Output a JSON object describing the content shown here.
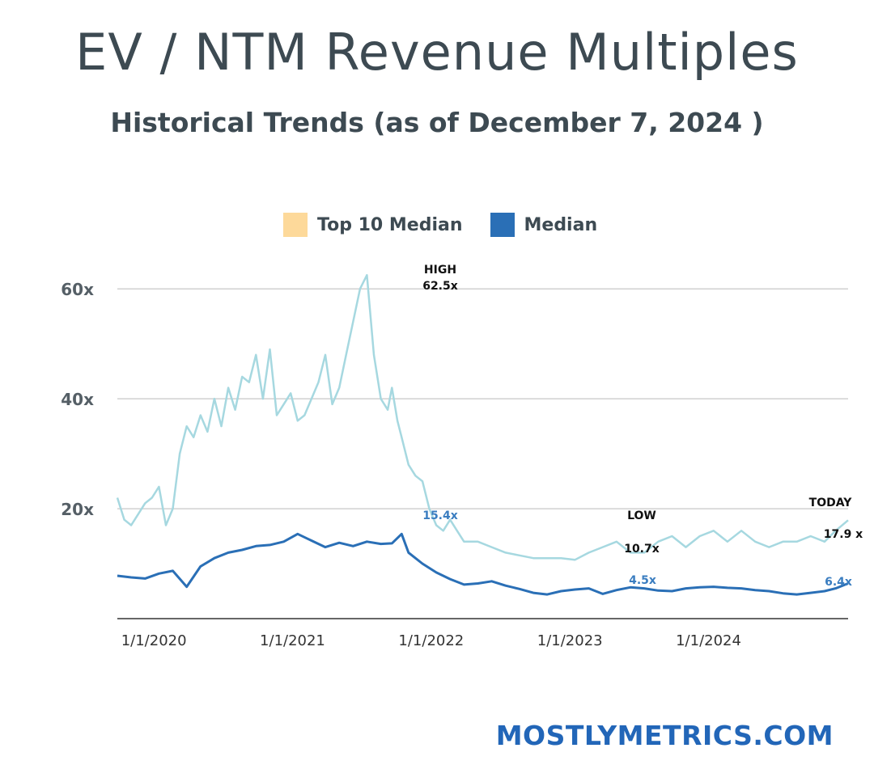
{
  "colors": {
    "top10": "#a6d8e0",
    "top10_swatch": "#fdd99a",
    "median": "#2a6fb6",
    "footer": "#2266b8"
  },
  "footer": {
    "text": "MOSTLYMETRICS.COM"
  },
  "chart_data": {
    "type": "line",
    "title": "EV / NTM Revenue Multiples",
    "subtitle": "Historical Trends (as of December 7, 2024   )",
    "legend": {
      "placement": "top",
      "entries": [
        "Top 10 Median",
        "Median"
      ]
    },
    "y_ticks": [
      "20x",
      "40x",
      "60x"
    ],
    "ylim": [
      0,
      64
    ],
    "x_ticks": [
      {
        "label": "1/1/2020",
        "value": 2020.0
      },
      {
        "label": "1/1/2021",
        "value": 2021.0
      },
      {
        "label": "1/1/2022",
        "value": 2022.0
      },
      {
        "label": "1/1/2023",
        "value": 2023.0
      },
      {
        "label": "1/1/2024",
        "value": 2024.0
      }
    ],
    "xlim": [
      2019.9,
      2025.17
    ],
    "grid": true,
    "series": [
      {
        "name": "Top 10 Median",
        "color": "#a6d8e0",
        "x": [
          2019.9,
          2019.95,
          2020.0,
          2020.05,
          2020.1,
          2020.15,
          2020.2,
          2020.25,
          2020.3,
          2020.35,
          2020.4,
          2020.45,
          2020.5,
          2020.55,
          2020.6,
          2020.65,
          2020.7,
          2020.75,
          2020.8,
          2020.85,
          2020.9,
          2020.95,
          2021.0,
          2021.05,
          2021.1,
          2021.15,
          2021.2,
          2021.25,
          2021.3,
          2021.35,
          2021.4,
          2021.45,
          2021.5,
          2021.55,
          2021.6,
          2021.65,
          2021.7,
          2021.75,
          2021.8,
          2021.85,
          2021.88,
          2021.92,
          2021.95,
          2022.0,
          2022.05,
          2022.1,
          2022.15,
          2022.2,
          2022.25,
          2022.3,
          2022.35,
          2022.4,
          2022.5,
          2022.6,
          2022.7,
          2022.8,
          2022.9,
          2023.0,
          2023.1,
          2023.2,
          2023.3,
          2023.4,
          2023.5,
          2023.6,
          2023.7,
          2023.8,
          2023.9,
          2024.0,
          2024.1,
          2024.2,
          2024.3,
          2024.4,
          2024.5,
          2024.6,
          2024.7,
          2024.8,
          2024.9,
          2025.0,
          2025.08,
          2025.17
        ],
        "values": [
          22,
          18,
          17,
          19,
          21,
          22,
          24,
          17,
          20,
          30,
          35,
          33,
          37,
          34,
          40,
          35,
          42,
          38,
          44,
          43,
          48,
          40,
          49,
          37,
          39,
          41,
          36,
          37,
          40,
          43,
          48,
          39,
          42,
          48,
          54,
          60,
          62.5,
          48,
          40,
          38,
          42,
          36,
          33,
          28,
          26,
          25,
          20,
          17,
          16,
          18,
          16,
          14,
          14,
          13,
          12,
          11.5,
          11,
          11,
          11,
          10.7,
          12,
          13,
          14,
          12,
          12,
          14,
          15,
          13,
          15,
          16,
          14,
          16,
          14,
          13,
          14,
          14,
          15,
          14,
          16,
          17.9
        ]
      },
      {
        "name": "Median",
        "color": "#2a6fb6",
        "x": [
          2019.9,
          2020.0,
          2020.1,
          2020.2,
          2020.3,
          2020.4,
          2020.5,
          2020.6,
          2020.7,
          2020.8,
          2020.9,
          2021.0,
          2021.1,
          2021.2,
          2021.3,
          2021.4,
          2021.5,
          2021.6,
          2021.7,
          2021.8,
          2021.88,
          2021.95,
          2022.0,
          2022.1,
          2022.2,
          2022.3,
          2022.4,
          2022.5,
          2022.6,
          2022.7,
          2022.8,
          2022.9,
          2023.0,
          2023.1,
          2023.2,
          2023.3,
          2023.4,
          2023.5,
          2023.6,
          2023.7,
          2023.8,
          2023.9,
          2024.0,
          2024.1,
          2024.2,
          2024.3,
          2024.4,
          2024.5,
          2024.6,
          2024.7,
          2024.8,
          2024.9,
          2025.0,
          2025.08,
          2025.17
        ],
        "values": [
          7.8,
          7.5,
          7.3,
          8.2,
          8.7,
          5.8,
          9.5,
          11,
          12,
          12.5,
          13.2,
          13.4,
          14,
          15.4,
          14.2,
          13,
          13.8,
          13.2,
          14,
          13.6,
          13.7,
          15.4,
          12,
          10,
          8.4,
          7.2,
          6.2,
          6.4,
          6.8,
          6.0,
          5.4,
          4.7,
          4.4,
          5.0,
          5.3,
          5.5,
          4.5,
          5.2,
          5.7,
          5.5,
          5.1,
          5.0,
          5.5,
          5.7,
          5.8,
          5.6,
          5.5,
          5.2,
          5.0,
          4.6,
          4.4,
          4.7,
          5.0,
          5.5,
          6.4
        ]
      }
    ],
    "annotations": [
      {
        "label": "HIGH",
        "value_label": "62.5x",
        "style": "dark"
      },
      {
        "label": "15.4x",
        "style": "blue"
      },
      {
        "label": "LOW",
        "value_label": "10.7x",
        "style": "dark"
      },
      {
        "label": "4.5x",
        "style": "blue"
      },
      {
        "label": "TODAY",
        "value_label": "17.9 x",
        "style": "dark"
      },
      {
        "label": "6.4x",
        "style": "blue"
      }
    ]
  }
}
